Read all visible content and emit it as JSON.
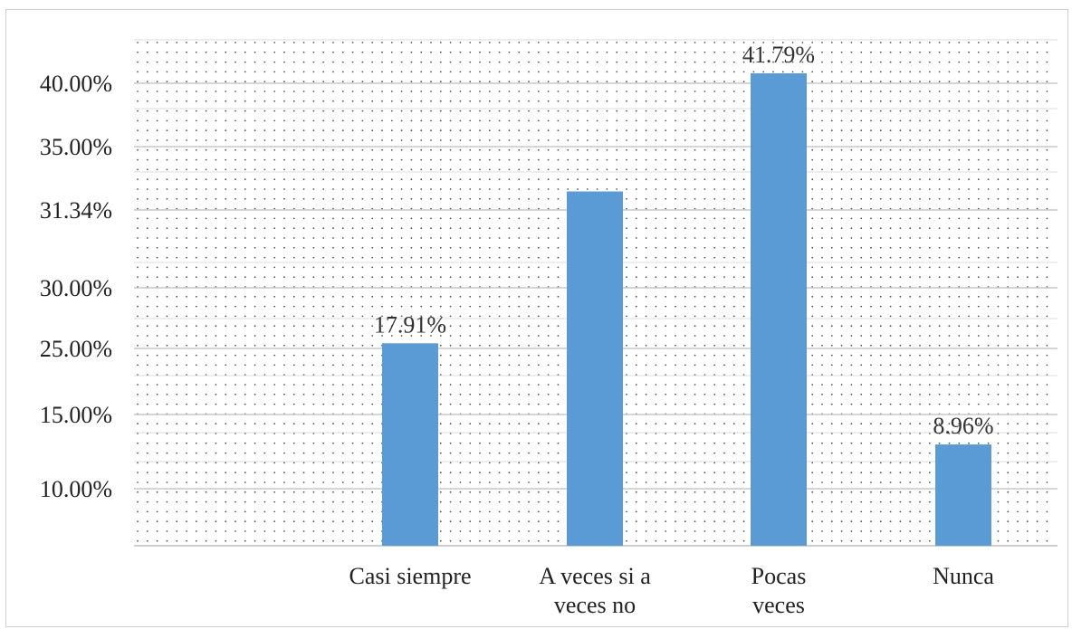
{
  "chart_data": {
    "type": "bar",
    "title": "",
    "xlabel": "",
    "ylabel": "",
    "grid": true,
    "legend": "none",
    "bar_color": "#5b9bd5",
    "ytick_labels": [
      "40.00%",
      "35.00%",
      "31.34%",
      "30.00%",
      "25.00%",
      "15.00%",
      "10.00%"
    ],
    "categories": [
      [
        "Casi siempre"
      ],
      [
        "A veces si a",
        "veces no"
      ],
      [
        "Pocas",
        "veces"
      ],
      [
        "Nunca"
      ]
    ],
    "values": [
      17.91,
      31.34,
      41.79,
      8.96
    ],
    "data_labels": [
      "17.91%",
      "",
      "41.79%",
      "8.96%"
    ]
  }
}
